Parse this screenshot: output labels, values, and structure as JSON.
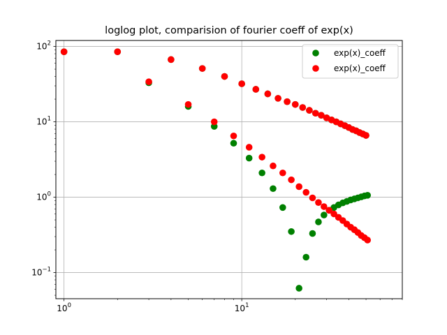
{
  "chart_data": {
    "type": "scatter",
    "title": "loglog plot, comparision of fourier coeff of exp(x)",
    "xlabel": "",
    "ylabel": "",
    "xscale": "log",
    "yscale": "log",
    "xlim": [
      0.9,
      80
    ],
    "ylim": [
      0.045,
      120
    ],
    "grid": true,
    "legend_position": "top-right",
    "x_ticks": [
      {
        "value": 1,
        "base": "10",
        "exp": "0"
      },
      {
        "value": 10,
        "base": "10",
        "exp": "1"
      }
    ],
    "y_ticks": [
      {
        "value": 0.1,
        "base": "10",
        "exp": "−1"
      },
      {
        "value": 1,
        "base": "10",
        "exp": "0"
      },
      {
        "value": 10,
        "base": "10",
        "exp": "1"
      },
      {
        "value": 100,
        "base": "10",
        "exp": "2"
      }
    ],
    "series": [
      {
        "name": "exp(x)_coeff",
        "color": "#008000",
        "points": [
          [
            1,
            85
          ],
          [
            2,
            85
          ],
          [
            3,
            33
          ],
          [
            4,
            67
          ],
          [
            5,
            16
          ],
          [
            6,
            51
          ],
          [
            7,
            8.7
          ],
          [
            8,
            40
          ],
          [
            9,
            5.2
          ],
          [
            10,
            32
          ],
          [
            11,
            3.3
          ],
          [
            12,
            27
          ],
          [
            13,
            2.1
          ],
          [
            14,
            23.5
          ],
          [
            15,
            1.3
          ],
          [
            16,
            20.5
          ],
          [
            17,
            0.73
          ],
          [
            18,
            18.5
          ],
          [
            19,
            0.35
          ],
          [
            20,
            17
          ],
          [
            21,
            0.062
          ],
          [
            22,
            15.5
          ],
          [
            23,
            0.16
          ],
          [
            24,
            14.2
          ],
          [
            25,
            0.33
          ],
          [
            26,
            13
          ],
          [
            27,
            0.47
          ],
          [
            28,
            12.2
          ],
          [
            29,
            0.58
          ],
          [
            30,
            11.3
          ],
          [
            31,
            0.67
          ],
          [
            32,
            10.6
          ],
          [
            33,
            0.73
          ],
          [
            34,
            10
          ],
          [
            35,
            0.79
          ],
          [
            36,
            9.4
          ],
          [
            37,
            0.84
          ],
          [
            38,
            8.9
          ],
          [
            39,
            0.88
          ],
          [
            40,
            8.4
          ],
          [
            41,
            0.92
          ],
          [
            42,
            7.9
          ],
          [
            43,
            0.95
          ],
          [
            44,
            7.6
          ],
          [
            45,
            0.98
          ],
          [
            46,
            7.2
          ],
          [
            47,
            1.01
          ],
          [
            48,
            6.9
          ],
          [
            49,
            1.04
          ],
          [
            50,
            6.6
          ],
          [
            51,
            1.06
          ]
        ]
      },
      {
        "name": "exp(x)_coeff",
        "color": "#ff0000",
        "points": [
          [
            1,
            85
          ],
          [
            2,
            85
          ],
          [
            3,
            34
          ],
          [
            4,
            67
          ],
          [
            5,
            17
          ],
          [
            6,
            51
          ],
          [
            7,
            10
          ],
          [
            8,
            40
          ],
          [
            9,
            6.5
          ],
          [
            10,
            32
          ],
          [
            11,
            4.6
          ],
          [
            12,
            27
          ],
          [
            13,
            3.4
          ],
          [
            14,
            23.5
          ],
          [
            15,
            2.6
          ],
          [
            16,
            20.5
          ],
          [
            17,
            2.1
          ],
          [
            18,
            18.5
          ],
          [
            19,
            1.7
          ],
          [
            20,
            17
          ],
          [
            21,
            1.38
          ],
          [
            22,
            15.5
          ],
          [
            23,
            1.16
          ],
          [
            24,
            14.2
          ],
          [
            25,
            0.98
          ],
          [
            26,
            13
          ],
          [
            27,
            0.85
          ],
          [
            28,
            12.2
          ],
          [
            29,
            0.75
          ],
          [
            30,
            11.3
          ],
          [
            31,
            0.67
          ],
          [
            32,
            10.6
          ],
          [
            33,
            0.6
          ],
          [
            34,
            10
          ],
          [
            35,
            0.54
          ],
          [
            36,
            9.4
          ],
          [
            37,
            0.49
          ],
          [
            38,
            8.9
          ],
          [
            39,
            0.44
          ],
          [
            40,
            8.4
          ],
          [
            41,
            0.4
          ],
          [
            42,
            7.9
          ],
          [
            43,
            0.37
          ],
          [
            44,
            7.6
          ],
          [
            45,
            0.34
          ],
          [
            46,
            7.2
          ],
          [
            47,
            0.31
          ],
          [
            48,
            6.9
          ],
          [
            49,
            0.29
          ],
          [
            50,
            6.6
          ],
          [
            51,
            0.27
          ]
        ]
      }
    ]
  }
}
